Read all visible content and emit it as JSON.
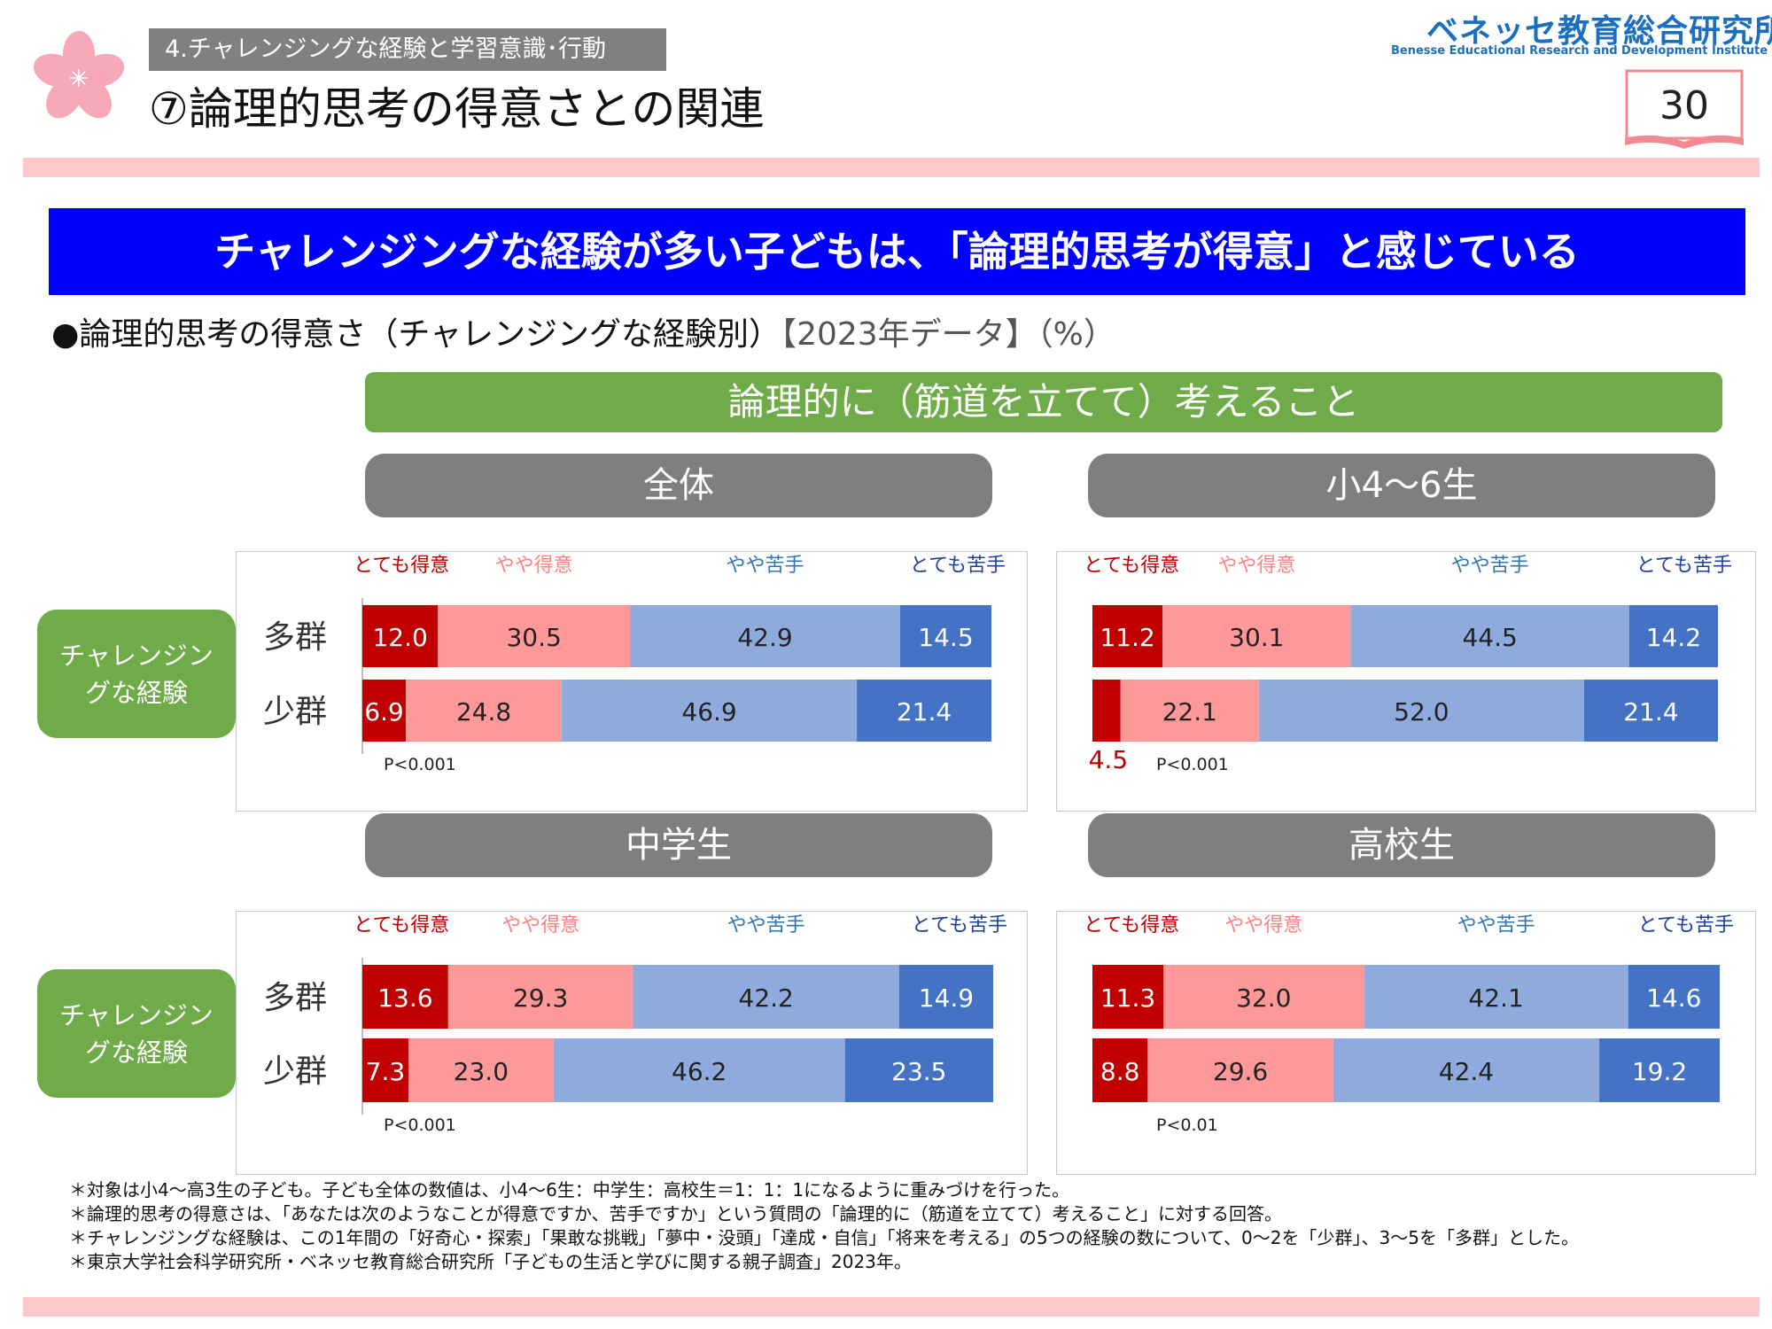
{
  "header": {
    "section_tag": "4.チャレンジングな経験と学習意識･行動",
    "page_title": "⑦論理的思考の得意さとの関連",
    "logo_jp": "ベネッセ教育総合研究所",
    "logo_en": "Benesse Educational Research and Development Institute",
    "page_number": "30"
  },
  "banner": "チャレンジングな経験が多い子どもは、「論理的思考が得意」と感じている",
  "subtitle": {
    "main": "●論理的思考の得意さ（チャレンジングな経験別）",
    "meta": "【2023年データ】（%）"
  },
  "question_bar": "論理的に（筋道を立てて）考えること",
  "group_label": "チャレンジングな経験",
  "colors": {
    "very_good": "#c00000",
    "somewhat_good": "#ff9999",
    "somewhat_poor": "#8faadc",
    "very_poor": "#4472c4",
    "label_very_good": "#c00000",
    "label_somewhat_good": "#ff8080",
    "label_somewhat_poor": "#2e75b6",
    "label_very_poor": "#1f3fa0"
  },
  "chart_data": [
    {
      "type": "bar",
      "stacked": true,
      "orientation": "horizontal",
      "title": "全体",
      "categories": [
        "多群",
        "少群"
      ],
      "legend": [
        "とても得意",
        "やや得意",
        "やや苦手",
        "とても苦手"
      ],
      "series": [
        {
          "name": "とても得意",
          "values": [
            12.0,
            6.9
          ]
        },
        {
          "name": "やや得意",
          "values": [
            30.5,
            24.8
          ]
        },
        {
          "name": "やや苦手",
          "values": [
            42.9,
            46.9
          ]
        },
        {
          "name": "とても苦手",
          "values": [
            14.5,
            21.4
          ]
        }
      ],
      "labels": [
        [
          "12.0",
          "30.5",
          "42.9",
          "14.5"
        ],
        [
          "6.9",
          "24.8",
          "46.9",
          "21.4"
        ]
      ],
      "significance": "P<0.001"
    },
    {
      "type": "bar",
      "stacked": true,
      "orientation": "horizontal",
      "title": "小4～6生",
      "categories": [
        "多群",
        "少群"
      ],
      "legend": [
        "とても得意",
        "やや得意",
        "やや苦手",
        "とても苦手"
      ],
      "series": [
        {
          "name": "とても得意",
          "values": [
            11.2,
            4.5
          ]
        },
        {
          "name": "やや得意",
          "values": [
            30.1,
            22.1
          ]
        },
        {
          "name": "やや苦手",
          "values": [
            44.5,
            52.0
          ]
        },
        {
          "name": "とても苦手",
          "values": [
            14.2,
            21.4
          ]
        }
      ],
      "labels": [
        [
          "11.2",
          "30.1",
          "44.5",
          "14.2"
        ],
        [
          "4.5",
          "22.1",
          "52.0",
          "21.4"
        ]
      ],
      "significance": "P<0.001"
    },
    {
      "type": "bar",
      "stacked": true,
      "orientation": "horizontal",
      "title": "中学生",
      "categories": [
        "多群",
        "少群"
      ],
      "legend": [
        "とても得意",
        "やや得意",
        "やや苦手",
        "とても苦手"
      ],
      "series": [
        {
          "name": "とても得意",
          "values": [
            13.6,
            7.3
          ]
        },
        {
          "name": "やや得意",
          "values": [
            29.3,
            23.0
          ]
        },
        {
          "name": "やや苦手",
          "values": [
            42.2,
            46.2
          ]
        },
        {
          "name": "とても苦手",
          "values": [
            14.9,
            23.5
          ]
        }
      ],
      "labels": [
        [
          "13.6",
          "29.3",
          "42.2",
          "14.9"
        ],
        [
          "7.3",
          "23.0",
          "46.2",
          "23.5"
        ]
      ],
      "significance": "P<0.001"
    },
    {
      "type": "bar",
      "stacked": true,
      "orientation": "horizontal",
      "title": "高校生",
      "categories": [
        "多群",
        "少群"
      ],
      "legend": [
        "とても得意",
        "やや得意",
        "やや苦手",
        "とても苦手"
      ],
      "series": [
        {
          "name": "とても得意",
          "values": [
            11.3,
            8.8
          ]
        },
        {
          "name": "やや得意",
          "values": [
            32.0,
            29.6
          ]
        },
        {
          "name": "やや苦手",
          "values": [
            42.1,
            42.4
          ]
        },
        {
          "name": "とても苦手",
          "values": [
            14.6,
            19.2
          ]
        }
      ],
      "labels": [
        [
          "11.3",
          "32.0",
          "42.1",
          "14.6"
        ],
        [
          "8.8",
          "29.6",
          "42.4",
          "19.2"
        ]
      ],
      "significance": "P<0.01"
    }
  ],
  "notes": [
    "＊対象は小4～高3生の子ども。子ども全体の数値は、小4～6生：中学生：高校生＝1：1：1になるように重みづけを行った。",
    "＊論理的思考の得意さは、「あなたは次のようなことが得意ですか、苦手ですか」という質問の「論理的に（筋道を立てて）考えること」に対する回答。",
    "＊チャレンジングな経験は、この1年間の「好奇心・探索」「果敢な挑戦」「夢中・没頭」「達成・自信」「将来を考える」の5つの経験の数について、0～2を「少群」、3～5を「多群」とした。",
    "＊東京大学社会科学研究所・ベネッセ教育総合研究所「子どもの生活と学びに関する親子調査」2023年。"
  ]
}
